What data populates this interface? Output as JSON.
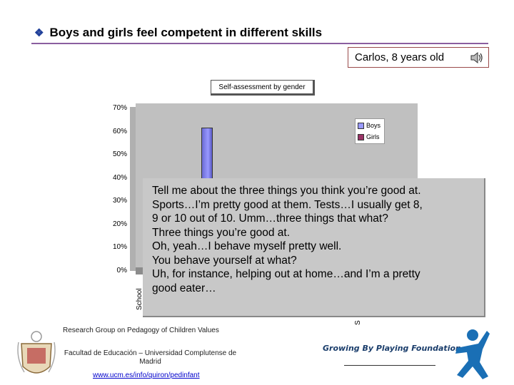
{
  "slide": {
    "title": "Boys and girls feel competent in different skills",
    "title_bullet": "❖",
    "speaker_label": "Carlos, 8 years old"
  },
  "chart": {
    "title": "Self-assessment by gender",
    "y_ticks": [
      "70%",
      "60%",
      "50%",
      "40%",
      "30%",
      "20%",
      "10%",
      "0%"
    ],
    "legend": [
      "Boys",
      "Girls"
    ],
    "x_labels_visible": [
      "School",
      "S"
    ],
    "colors": {
      "boys": "#9999ff",
      "girls": "#993366",
      "plot": "#c0c0c0"
    }
  },
  "chart_data": {
    "type": "bar",
    "title": "Self-assessment by gender",
    "ylim": [
      0,
      70
    ],
    "series": [
      {
        "name": "Boys",
        "values": [
          62
        ]
      },
      {
        "name": "Girls",
        "values": []
      }
    ]
  },
  "quote": {
    "lines": [
      "Tell me about the three things you think you’re good at.",
      "Sports…I’m pretty good at them. Tests…I usually get 8,",
      "9 or 10 out of 10.  Umm…three things that what?",
      "Three things you’re good at.",
      "Oh, yeah…I behave myself pretty well.",
      "You behave yourself at what?",
      "Uh, for instance, helping out at home…and I’m a pretty",
      "good eater…"
    ]
  },
  "footer": {
    "research_group": "Research Group on Pedagogy of Children Values",
    "faculty": "Facultad de Educación – Universidad Complutense de",
    "city": "Madrid",
    "url": "www.ucm.es/info/quiron/pedinfant",
    "foundation": "Growing By Playing Foundation"
  }
}
